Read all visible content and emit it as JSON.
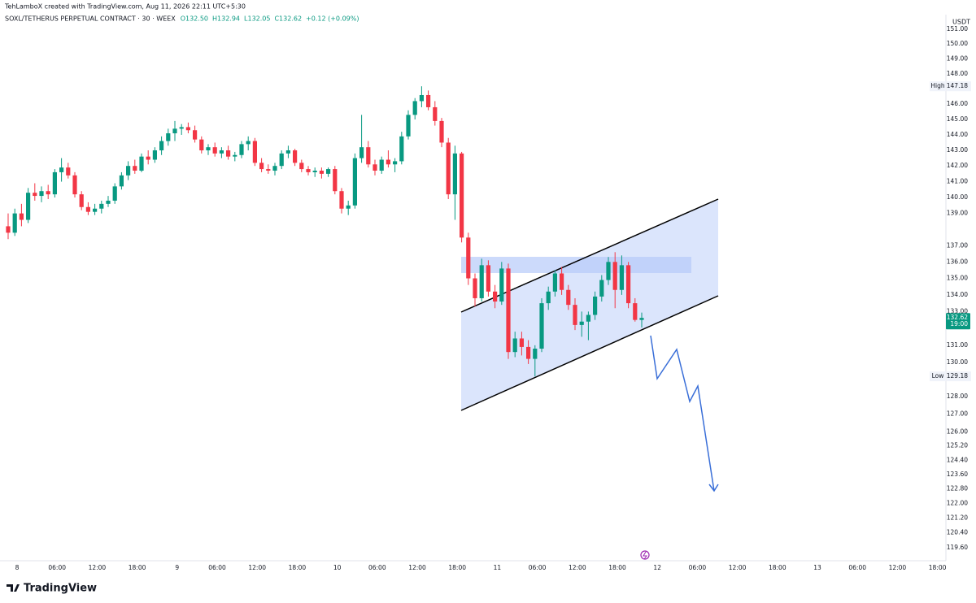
{
  "header": {
    "credit": "TehLamboX created with TradingView.com, Aug 11, 2026 22:11 UTC+5:30",
    "symbol": "SOXL/TETHERUS PERPETUAL CONTRACT · 30 · WEEX",
    "ohlc_legend": [
      "O132.50",
      "H132.94",
      "L132.05",
      "C132.62",
      "+0.12 (+0.09%)"
    ],
    "currency": "USDT",
    "logo": "TradingView"
  },
  "chart_data": {
    "type": "candlestick",
    "log": true,
    "up_color": "#089981",
    "down_color": "#f23645",
    "ylim": [
      118.9,
      152.0
    ],
    "yticks": [
      {
        "value": 151,
        "label": "151.00"
      },
      {
        "value": 150,
        "label": "150.00"
      },
      {
        "value": 149,
        "label": "149.00"
      },
      {
        "value": 148,
        "label": "148.00"
      },
      {
        "value": 146,
        "label": "146.00"
      },
      {
        "value": 145,
        "label": "145.00"
      },
      {
        "value": 144,
        "label": "144.00"
      },
      {
        "value": 143,
        "label": "143.00"
      },
      {
        "value": 142,
        "label": "142.00"
      },
      {
        "value": 141,
        "label": "141.00"
      },
      {
        "value": 140,
        "label": "140.00"
      },
      {
        "value": 139,
        "label": "139.00"
      },
      {
        "value": 137,
        "label": "137.00"
      },
      {
        "value": 136,
        "label": "136.00"
      },
      {
        "value": 135,
        "label": "135.00"
      },
      {
        "value": 134,
        "label": "134.00"
      },
      {
        "value": 133,
        "label": "133.00"
      },
      {
        "value": 131,
        "label": "131.00"
      },
      {
        "value": 130,
        "label": "130.00"
      },
      {
        "value": 128,
        "label": "128.00"
      },
      {
        "value": 127,
        "label": "127.00"
      },
      {
        "value": 126,
        "label": "126.00"
      },
      {
        "value": 125.2,
        "label": "125.20"
      },
      {
        "value": 124.4,
        "label": "124.40"
      },
      {
        "value": 123.6,
        "label": "123.60"
      },
      {
        "value": 122.8,
        "label": "122.80"
      },
      {
        "value": 122,
        "label": "122.00"
      },
      {
        "value": 121.2,
        "label": "121.20"
      },
      {
        "value": 120.4,
        "label": "120.40"
      },
      {
        "value": 119.6,
        "label": "119.60"
      }
    ],
    "xticks": [
      "8",
      "06:00",
      "12:00",
      "18:00",
      "9",
      "06:00",
      "12:00",
      "18:00",
      "10",
      "06:00",
      "12:00",
      "18:00",
      "11",
      "06:00",
      "12:00",
      "18:00",
      "12",
      "06:00",
      "12:00",
      "18:00",
      "13",
      "06:00",
      "12:00",
      "18:00"
    ],
    "high": {
      "name": "High",
      "value": 147.18,
      "label": "147.18"
    },
    "low": {
      "name": "Low",
      "value": 129.18,
      "label": "129.18"
    },
    "last": {
      "value": 132.62,
      "label": "132.62",
      "countdown": "19:00"
    },
    "ohlc": [
      [
        138.2,
        139.0,
        137.4,
        137.8
      ],
      [
        137.8,
        139.3,
        137.6,
        139.0
      ],
      [
        139.0,
        139.6,
        138.2,
        138.6
      ],
      [
        138.6,
        140.6,
        138.4,
        140.3
      ],
      [
        140.3,
        140.9,
        139.8,
        140.1
      ],
      [
        140.1,
        140.7,
        139.7,
        140.4
      ],
      [
        140.4,
        140.8,
        139.9,
        140.2
      ],
      [
        140.2,
        141.8,
        140.0,
        141.6
      ],
      [
        141.6,
        142.5,
        141.0,
        141.9
      ],
      [
        141.9,
        142.2,
        141.2,
        141.4
      ],
      [
        141.4,
        141.6,
        140.0,
        140.2
      ],
      [
        140.2,
        140.4,
        139.2,
        139.4
      ],
      [
        139.4,
        139.7,
        138.9,
        139.1
      ],
      [
        139.1,
        139.6,
        138.9,
        139.3
      ],
      [
        139.3,
        139.8,
        139.0,
        139.6
      ],
      [
        139.6,
        140.1,
        139.4,
        139.8
      ],
      [
        139.8,
        140.9,
        139.6,
        140.7
      ],
      [
        140.7,
        141.6,
        140.5,
        141.4
      ],
      [
        141.4,
        142.3,
        141.1,
        142.0
      ],
      [
        142.0,
        142.4,
        141.5,
        141.7
      ],
      [
        141.7,
        142.8,
        141.6,
        142.6
      ],
      [
        142.6,
        143.0,
        142.1,
        142.4
      ],
      [
        142.4,
        143.2,
        142.2,
        143.0
      ],
      [
        143.0,
        143.9,
        142.7,
        143.6
      ],
      [
        143.6,
        144.4,
        143.3,
        144.1
      ],
      [
        144.1,
        144.9,
        143.6,
        144.4
      ],
      [
        144.4,
        144.7,
        144.0,
        144.5
      ],
      [
        144.5,
        144.8,
        144.1,
        144.3
      ],
      [
        144.3,
        144.6,
        143.5,
        143.7
      ],
      [
        143.7,
        143.9,
        142.8,
        143.0
      ],
      [
        143.0,
        143.4,
        142.7,
        143.2
      ],
      [
        143.2,
        143.5,
        142.6,
        142.8
      ],
      [
        142.8,
        143.2,
        142.5,
        143.0
      ],
      [
        143.0,
        143.3,
        142.4,
        142.6
      ],
      [
        142.6,
        142.9,
        142.3,
        142.7
      ],
      [
        142.7,
        143.6,
        142.5,
        143.4
      ],
      [
        143.4,
        143.9,
        143.0,
        143.6
      ],
      [
        143.6,
        143.8,
        142.0,
        142.2
      ],
      [
        142.2,
        142.5,
        141.6,
        141.8
      ],
      [
        141.8,
        142.1,
        141.5,
        141.7
      ],
      [
        141.7,
        142.2,
        141.4,
        142.0
      ],
      [
        142.0,
        143.0,
        141.8,
        142.8
      ],
      [
        142.8,
        143.3,
        142.5,
        143.0
      ],
      [
        143.0,
        143.1,
        142.0,
        142.2
      ],
      [
        142.2,
        142.4,
        141.6,
        141.8
      ],
      [
        141.8,
        142.0,
        141.4,
        141.6
      ],
      [
        141.6,
        141.9,
        141.3,
        141.7
      ],
      [
        141.7,
        141.9,
        141.2,
        141.5
      ],
      [
        141.5,
        141.9,
        141.3,
        141.8
      ],
      [
        141.8,
        142.0,
        140.2,
        140.4
      ],
      [
        140.4,
        140.6,
        139.0,
        139.3
      ],
      [
        139.3,
        139.8,
        138.9,
        139.5
      ],
      [
        139.5,
        142.8,
        139.3,
        142.5
      ],
      [
        142.5,
        145.3,
        142.2,
        143.2
      ],
      [
        143.2,
        143.6,
        141.9,
        142.1
      ],
      [
        142.1,
        142.4,
        141.4,
        141.7
      ],
      [
        141.7,
        142.6,
        141.5,
        142.4
      ],
      [
        142.4,
        143.0,
        141.9,
        142.1
      ],
      [
        142.1,
        142.5,
        141.6,
        142.3
      ],
      [
        142.3,
        144.2,
        142.1,
        143.9
      ],
      [
        143.9,
        145.6,
        143.7,
        145.3
      ],
      [
        145.3,
        146.4,
        145.0,
        146.2
      ],
      [
        146.2,
        147.18,
        145.8,
        146.6
      ],
      [
        146.6,
        146.9,
        145.6,
        145.8
      ],
      [
        145.8,
        146.2,
        144.6,
        144.9
      ],
      [
        144.9,
        145.1,
        143.2,
        143.5
      ],
      [
        143.5,
        143.8,
        139.9,
        140.2
      ],
      [
        140.2,
        143.3,
        138.6,
        142.8
      ],
      [
        142.8,
        142.9,
        137.2,
        137.5
      ],
      [
        137.5,
        137.8,
        134.6,
        135.0
      ],
      [
        135.0,
        135.3,
        133.3,
        133.8
      ],
      [
        133.8,
        136.2,
        133.6,
        135.8
      ],
      [
        135.8,
        136.1,
        133.9,
        134.2
      ],
      [
        134.2,
        134.6,
        133.2,
        133.6
      ],
      [
        133.6,
        136.0,
        133.4,
        135.6
      ],
      [
        135.6,
        135.9,
        130.2,
        130.6
      ],
      [
        130.6,
        131.8,
        130.3,
        131.4
      ],
      [
        131.4,
        131.8,
        130.4,
        130.9
      ],
      [
        130.9,
        131.3,
        129.9,
        130.2
      ],
      [
        130.2,
        131.0,
        129.18,
        130.8
      ],
      [
        130.8,
        133.8,
        130.6,
        133.5
      ],
      [
        133.5,
        134.5,
        133.1,
        134.2
      ],
      [
        134.2,
        135.5,
        133.9,
        135.3
      ],
      [
        135.3,
        135.7,
        134.0,
        134.3
      ],
      [
        134.3,
        134.6,
        133.1,
        133.4
      ],
      [
        133.4,
        133.8,
        131.9,
        132.2
      ],
      [
        132.2,
        133.0,
        131.5,
        132.4
      ],
      [
        132.4,
        133.0,
        131.3,
        132.8
      ],
      [
        132.8,
        134.2,
        132.5,
        133.9
      ],
      [
        133.9,
        135.2,
        133.6,
        134.9
      ],
      [
        134.9,
        136.3,
        134.6,
        136.0
      ],
      [
        136.0,
        136.6,
        133.2,
        134.3
      ],
      [
        134.3,
        136.4,
        134.0,
        135.8
      ],
      [
        135.8,
        136.0,
        133.2,
        133.5
      ],
      [
        133.5,
        133.8,
        132.4,
        132.5
      ],
      [
        132.5,
        132.94,
        132.05,
        132.62
      ]
    ]
  }
}
